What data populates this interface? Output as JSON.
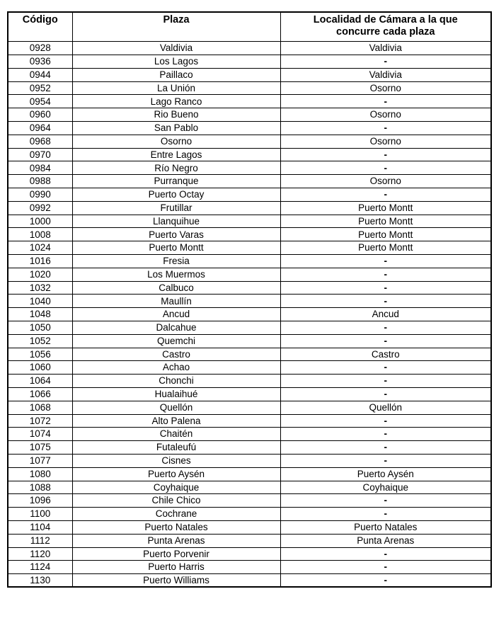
{
  "page": {
    "background_color": "#ffffff",
    "text_color": "#000000",
    "border_color": "#000000"
  },
  "table": {
    "header": {
      "codigo": "Código",
      "plaza": "Plaza",
      "localidad": "Localidad de Cámara a la que concurre cada plaza"
    },
    "rows": [
      [
        "0928",
        "Valdivia",
        "Valdivia"
      ],
      [
        "0936",
        "Los Lagos",
        "-"
      ],
      [
        "0944",
        "Paillaco",
        "Valdivia"
      ],
      [
        "0952",
        "La Unión",
        "Osorno"
      ],
      [
        "0954",
        "Lago Ranco",
        "-"
      ],
      [
        "0960",
        "Rio Bueno",
        "Osorno"
      ],
      [
        "0964",
        "San Pablo",
        "-"
      ],
      [
        "0968",
        "Osorno",
        "Osorno"
      ],
      [
        "0970",
        "Entre Lagos",
        "-"
      ],
      [
        "0984",
        "Río Negro",
        "-"
      ],
      [
        "0988",
        "Purranque",
        "Osorno"
      ],
      [
        "0990",
        "Puerto Octay",
        "-"
      ],
      [
        "0992",
        "Frutillar",
        "Puerto Montt"
      ],
      [
        "1000",
        "Llanquihue",
        "Puerto Montt"
      ],
      [
        "1008",
        "Puerto Varas",
        "Puerto Montt"
      ],
      [
        "1024",
        "Puerto Montt",
        "Puerto Montt"
      ],
      [
        "1016",
        "Fresia",
        "-"
      ],
      [
        "1020",
        "Los Muermos",
        "-"
      ],
      [
        "1032",
        "Calbuco",
        "-"
      ],
      [
        "1040",
        "Maullín",
        "-"
      ],
      [
        "1048",
        "Ancud",
        "Ancud"
      ],
      [
        "1050",
        "Dalcahue",
        "-"
      ],
      [
        "1052",
        "Quemchi",
        "-"
      ],
      [
        "1056",
        "Castro",
        "Castro"
      ],
      [
        "1060",
        "Achao",
        "-"
      ],
      [
        "1064",
        "Chonchi",
        "-"
      ],
      [
        "1066",
        "Hualaihué",
        "-"
      ],
      [
        "1068",
        "Quellón",
        "Quellón"
      ],
      [
        "1072",
        "Alto Palena",
        "-"
      ],
      [
        "1074",
        "Chaitén",
        "-"
      ],
      [
        "1075",
        "Futaleufú",
        "-"
      ],
      [
        "1077",
        "Cisnes",
        "-"
      ],
      [
        "1080",
        "Puerto Aysén",
        "Puerto Aysén"
      ],
      [
        "1088",
        "Coyhaique",
        "Coyhaique"
      ],
      [
        "1096",
        "Chile Chico",
        "-"
      ],
      [
        "1100",
        "Cochrane",
        "-"
      ],
      [
        "1104",
        "Puerto Natales",
        "Puerto Natales"
      ],
      [
        "1112",
        "Punta Arenas",
        "Punta Arenas"
      ],
      [
        "1120",
        "Puerto Porvenir",
        "-"
      ],
      [
        "1124",
        "Puerto Harris",
        "-"
      ],
      [
        "1130",
        "Puerto Williams",
        "-"
      ]
    ]
  }
}
